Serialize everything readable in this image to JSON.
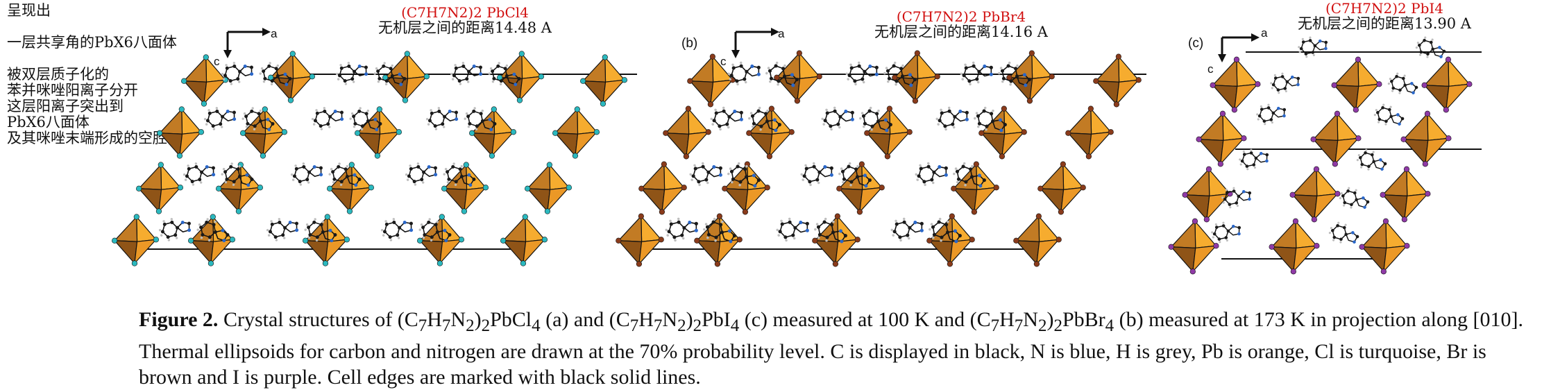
{
  "notes": {
    "line1": "呈现出",
    "line2": "一层共享角的PbX6八面体",
    "line3": "被双层质子化的",
    "line4": "苯并咪唑阳离子分开",
    "line5": "这层阳离子突出到",
    "line6": "PbX6八面体",
    "line7": "及其咪唑末端形成的空腔中"
  },
  "annotations": {
    "a_formula": "(C7H7N2)2 PbCl4",
    "a_distance": "无机层之间的距离14.48 A",
    "b_formula": "(C7H7N2)2 PbBr4",
    "b_distance": "无机层之间的距离14.16 A",
    "c_formula": "(C7H7N2)2 PbI4",
    "c_distance": "无机层之间的距离13.90 A"
  },
  "panels": {
    "b_label": "(b)",
    "c_label": "(c)",
    "axis_a": "a",
    "axis_c": "c"
  },
  "colors": {
    "octahedron_face_light": "#f5a623",
    "octahedron_face_dark": "#9a5a1c",
    "cl_atom": "#2bb9bf",
    "br_atom": "#8a3b1b",
    "i_atom": "#8f3aa6",
    "n_atom": "#2a67c9",
    "c_atom": "#1a1a1a"
  },
  "caption": {
    "label": "Figure 2.",
    "text1": "Crystal structures of (C",
    "text2": "H",
    "text3": "N",
    "text4": ")",
    "text5": "PbCl",
    "text6": " (a) and (C",
    "text7": "H",
    "text8": "N",
    "text9": ")",
    "text10": "PbI",
    "text11": " (c) measured at 100 K and (C",
    "text12": "H",
    "text13": "N",
    "text14": ")",
    "text15": "PbBr",
    "text16": " (b) measured at 173 K in projection along [010]. Thermal ellipsoids for carbon and nitrogen are drawn at the 70% probability level. C is displayed in black, N is blue, H is grey, Pb is orange, Cl is turquoise, Br is brown and I is purple. Cell edges are marked with black solid lines.",
    "sub_seven": "7",
    "sub_two": "2",
    "sub_four": "4"
  }
}
